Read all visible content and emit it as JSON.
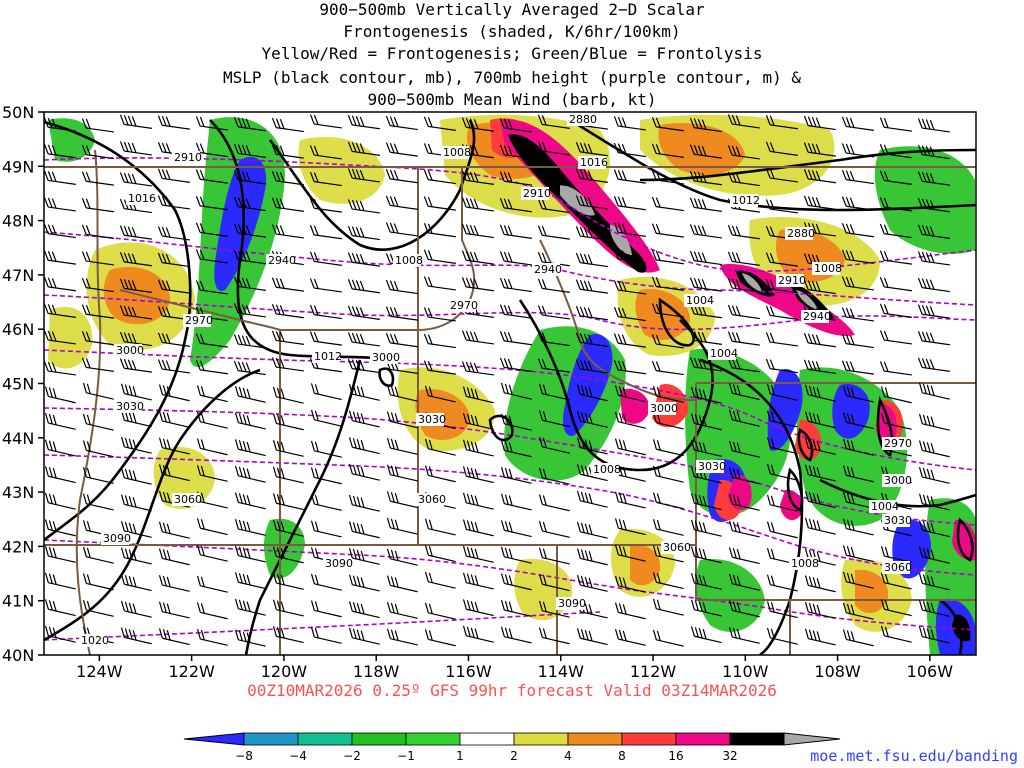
{
  "title_lines": [
    "900−500mb Vertically Averaged 2−D Scalar",
    "Frontogenesis (shaded, K/6hr/100km)",
    "Yellow/Red = Frontogenesis;  Green/Blue = Frontolysis",
    "MSLP (black contour, mb), 700mb height (purple contour, m) &",
    "900−500mb Mean Wind (barb, kt)"
  ],
  "valid_text": "00Z10MAR2026 0.25º GFS 99hr forecast Valid 03Z14MAR2026",
  "credit": "moe.met.fsu.edu/banding",
  "axes": {
    "lat_labels": [
      "50N",
      "49N",
      "48N",
      "47N",
      "46N",
      "45N",
      "44N",
      "43N",
      "42N",
      "41N",
      "40N"
    ],
    "lat_values": [
      50,
      49,
      48,
      47,
      46,
      45,
      44,
      43,
      42,
      41,
      40
    ],
    "lon_labels": [
      "124W",
      "122W",
      "120W",
      "118W",
      "116W",
      "114W",
      "112W",
      "110W",
      "108W",
      "106W"
    ],
    "lon_values": [
      -124,
      -122,
      -120,
      -118,
      -116,
      -114,
      -112,
      -110,
      -108,
      -106
    ],
    "lon_range": [
      -125.2,
      -105.0
    ],
    "lat_range": [
      40,
      50
    ]
  },
  "colorbar": {
    "labels": [
      "−8",
      "−4",
      "−2",
      "−1",
      "1",
      "2",
      "4",
      "8",
      "16",
      "32"
    ],
    "colors": [
      "#2a2aff",
      "#1e96c8",
      "#10c090",
      "#22c020",
      "#32d232",
      "#ffffff",
      "#dcdc40",
      "#ee8a20",
      "#ff3c3c",
      "#ee0888",
      "#000000",
      "#a8a8a8"
    ]
  },
  "mslp_labels": [
    "1008",
    "1016",
    "1012",
    "1008",
    "1004",
    "1004",
    "1012",
    "1008",
    "1008",
    "1004",
    "1008",
    "1016",
    "1020"
  ],
  "height_labels": [
    "2880",
    "2910",
    "2910",
    "2940",
    "2940",
    "2970",
    "2970",
    "3000",
    "3000",
    "3000",
    "3030",
    "3030",
    "3030",
    "3060",
    "3060",
    "3060",
    "3090",
    "3090",
    "3090",
    "2880",
    "2910",
    "2940",
    "2970",
    "3000",
    "3030",
    "3060"
  ],
  "colors": {
    "frontogenesis_yellow": "#dcdc40",
    "frontogenesis_orange": "#ee8a20",
    "frontogenesis_red": "#ff3c3c",
    "frontogenesis_magenta": "#ee0888",
    "frontolysis_green": "#22c020",
    "frontolysis_blue": "#2a2aff",
    "mslp_contour": "#000000",
    "height_contour": "#b000d0",
    "borders": "#7a5a40",
    "valid_text": "#ff5050",
    "credit": "#3040ff"
  }
}
